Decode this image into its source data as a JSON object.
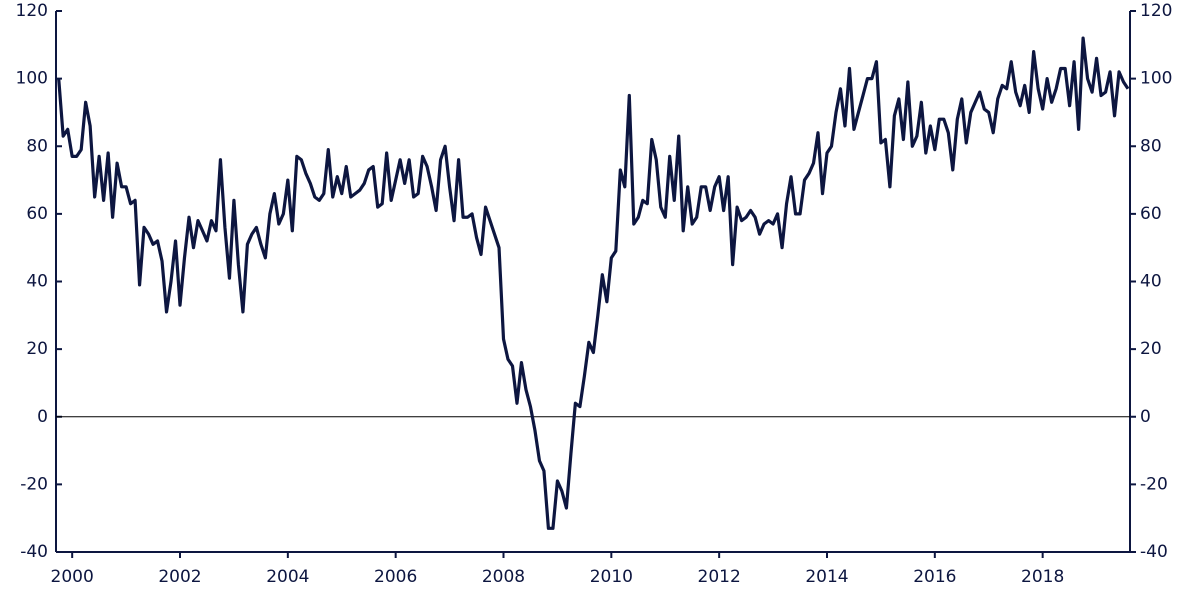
{
  "chart_data": {
    "type": "line",
    "color": "#0d1640",
    "line_width": 3.2,
    "xlim": [
      1999.7,
      2019.62
    ],
    "xticks": [
      2000,
      2002,
      2004,
      2006,
      2008,
      2010,
      2012,
      2014,
      2016,
      2018
    ],
    "ylim": [
      -40,
      120
    ],
    "yticks": [
      -40,
      -20,
      0,
      20,
      40,
      60,
      80,
      100,
      120
    ],
    "y2lim": [
      -40,
      120
    ],
    "y2ticks": [
      -40,
      -20,
      0,
      20,
      40,
      60,
      80,
      100,
      120
    ],
    "grid": false,
    "reference_line": 0,
    "x": [
      1999.75,
      1999.833,
      1999.917,
      2000,
      2000.083,
      2000.167,
      2000.25,
      2000.333,
      2000.417,
      2000.5,
      2000.583,
      2000.667,
      2000.75,
      2000.833,
      2000.917,
      2001,
      2001.083,
      2001.167,
      2001.25,
      2001.333,
      2001.417,
      2001.5,
      2001.583,
      2001.667,
      2001.75,
      2001.833,
      2001.917,
      2002,
      2002.083,
      2002.167,
      2002.25,
      2002.333,
      2002.417,
      2002.5,
      2002.583,
      2002.667,
      2002.75,
      2002.833,
      2002.917,
      2003,
      2003.083,
      2003.167,
      2003.25,
      2003.333,
      2003.417,
      2003.5,
      2003.583,
      2003.667,
      2003.75,
      2003.833,
      2003.917,
      2004,
      2004.083,
      2004.167,
      2004.25,
      2004.333,
      2004.417,
      2004.5,
      2004.583,
      2004.667,
      2004.75,
      2004.833,
      2004.917,
      2005,
      2005.083,
      2005.167,
      2005.25,
      2005.333,
      2005.417,
      2005.5,
      2005.583,
      2005.667,
      2005.75,
      2005.833,
      2005.917,
      2006,
      2006.083,
      2006.167,
      2006.25,
      2006.333,
      2006.417,
      2006.5,
      2006.583,
      2006.667,
      2006.75,
      2006.833,
      2006.917,
      2007,
      2007.083,
      2007.167,
      2007.25,
      2007.333,
      2007.417,
      2007.5,
      2007.583,
      2007.667,
      2007.75,
      2007.833,
      2007.917,
      2008,
      2008.083,
      2008.167,
      2008.25,
      2008.333,
      2008.417,
      2008.5,
      2008.583,
      2008.667,
      2008.75,
      2008.833,
      2008.917,
      2009,
      2009.083,
      2009.167,
      2009.25,
      2009.333,
      2009.417,
      2009.5,
      2009.583,
      2009.667,
      2009.75,
      2009.833,
      2009.917,
      2010,
      2010.083,
      2010.167,
      2010.25,
      2010.333,
      2010.417,
      2010.5,
      2010.583,
      2010.667,
      2010.75,
      2010.833,
      2010.917,
      2011,
      2011.083,
      2011.167,
      2011.25,
      2011.333,
      2011.417,
      2011.5,
      2011.583,
      2011.667,
      2011.75,
      2011.833,
      2011.917,
      2012,
      2012.083,
      2012.167,
      2012.25,
      2012.333,
      2012.417,
      2012.5,
      2012.583,
      2012.667,
      2012.75,
      2012.833,
      2012.917,
      2013,
      2013.083,
      2013.167,
      2013.25,
      2013.333,
      2013.417,
      2013.5,
      2013.583,
      2013.667,
      2013.75,
      2013.833,
      2013.917,
      2014,
      2014.083,
      2014.167,
      2014.25,
      2014.333,
      2014.417,
      2014.5,
      2014.583,
      2014.667,
      2014.75,
      2014.833,
      2014.917,
      2015,
      2015.083,
      2015.167,
      2015.25,
      2015.333,
      2015.417,
      2015.5,
      2015.583,
      2015.667,
      2015.75,
      2015.833,
      2015.917,
      2016,
      2016.083,
      2016.167,
      2016.25,
      2016.333,
      2016.417,
      2016.5,
      2016.583,
      2016.667,
      2016.75,
      2016.833,
      2016.917,
      2017,
      2017.083,
      2017.167,
      2017.25,
      2017.333,
      2017.417,
      2017.5,
      2017.583,
      2017.667,
      2017.75,
      2017.833,
      2017.917,
      2018,
      2018.083,
      2018.167,
      2018.25,
      2018.333,
      2018.417,
      2018.5,
      2018.583,
      2018.667,
      2018.75,
      2018.833,
      2018.917,
      2019,
      2019.083,
      2019.167,
      2019.25,
      2019.333,
      2019.417,
      2019.5,
      2019.583
    ],
    "values": [
      100,
      83,
      85,
      77,
      77,
      79,
      93,
      86,
      65,
      77,
      64,
      78,
      59,
      75,
      68,
      68,
      63,
      64,
      39,
      56,
      54,
      51,
      52,
      46,
      31,
      40,
      52,
      33,
      47,
      59,
      50,
      58,
      55,
      52,
      58,
      55,
      76,
      56,
      41,
      64,
      45,
      31,
      51,
      54,
      56,
      51,
      47,
      60,
      66,
      57,
      60,
      70,
      55,
      77,
      76,
      72,
      69,
      65,
      64,
      66,
      79,
      65,
      71,
      66,
      74,
      65,
      66,
      67,
      69,
      73,
      74,
      62,
      63,
      78,
      64,
      70,
      76,
      69,
      76,
      65,
      66,
      77,
      74,
      68,
      61,
      76,
      80,
      68,
      58,
      76,
      59,
      59,
      60,
      53,
      48,
      62,
      58,
      54,
      50,
      23,
      17,
      15,
      4,
      16,
      8,
      3,
      -4,
      -13,
      -16,
      -33,
      -33,
      -19,
      -22,
      -27,
      -11,
      4,
      3,
      12,
      22,
      19,
      30,
      42,
      34,
      47,
      49,
      73,
      68,
      95,
      57,
      59,
      64,
      63,
      82,
      76,
      62,
      59,
      77,
      64,
      83,
      55,
      68,
      57,
      59,
      68,
      68,
      61,
      68,
      71,
      61,
      71,
      45,
      62,
      58,
      59,
      61,
      59,
      54,
      57,
      58,
      57,
      60,
      50,
      63,
      71,
      60,
      60,
      70,
      72,
      75,
      84,
      66,
      78,
      80,
      90,
      97,
      86,
      103,
      85,
      90,
      95,
      100,
      100,
      105,
      81,
      82,
      68,
      89,
      94,
      82,
      99,
      80,
      83,
      93,
      78,
      86,
      79,
      88,
      88,
      84,
      73,
      88,
      94,
      81,
      90,
      93,
      96,
      91,
      90,
      84,
      94,
      98,
      97,
      105,
      96,
      92,
      98,
      90,
      108,
      97,
      91,
      100,
      93,
      97,
      103,
      103,
      92,
      105,
      85,
      112,
      100,
      96,
      106,
      95,
      96,
      102,
      89,
      102,
      99,
      97
    ]
  }
}
